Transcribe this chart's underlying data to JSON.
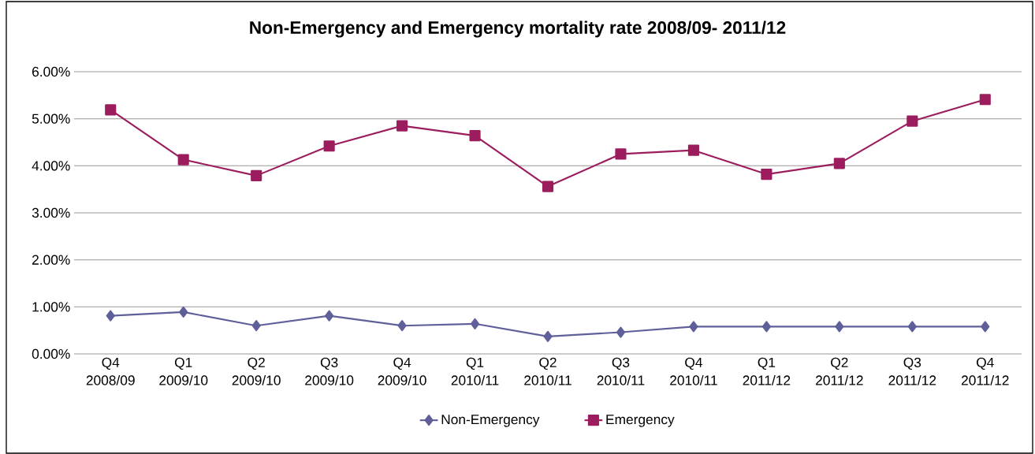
{
  "chart_data": {
    "type": "line",
    "title": "Non-Emergency and Emergency mortality rate 2008/09- 2011/12",
    "categories": [
      "Q4 2008/09",
      "Q1 2009/10",
      "Q2 2009/10",
      "Q3 2009/10",
      "Q4 2009/10",
      "Q1 2010/11",
      "Q2 2010/11",
      "Q3 2010/11",
      "Q4 2010/11",
      "Q1 2011/12",
      "Q2 2011/12",
      "Q3 2011/12",
      "Q4 2011/12"
    ],
    "series": [
      {
        "name": "Non-Emergency",
        "color": "#5f5f9a",
        "marker": "diamond",
        "values": [
          0.81,
          0.89,
          0.6,
          0.81,
          0.6,
          0.64,
          0.37,
          0.46,
          0.58,
          0.58,
          0.58,
          0.58,
          0.58
        ]
      },
      {
        "name": "Emergency",
        "color": "#9b1d5e",
        "marker": "square",
        "values": [
          5.19,
          4.13,
          3.79,
          4.42,
          4.85,
          4.64,
          3.56,
          4.25,
          4.33,
          3.82,
          4.05,
          4.95,
          5.41
        ]
      }
    ],
    "ylim": [
      0,
      6
    ],
    "yticks": [
      {
        "value": 0,
        "label": "0.00%"
      },
      {
        "value": 1,
        "label": "1.00%"
      },
      {
        "value": 2,
        "label": "2.00%"
      },
      {
        "value": 3,
        "label": "3.00%"
      },
      {
        "value": 4,
        "label": "4.00%"
      },
      {
        "value": 5,
        "label": "5.00%"
      },
      {
        "value": 6,
        "label": "6.00%"
      }
    ],
    "grid": "y",
    "legend": "bottom",
    "line_style": "solid"
  }
}
